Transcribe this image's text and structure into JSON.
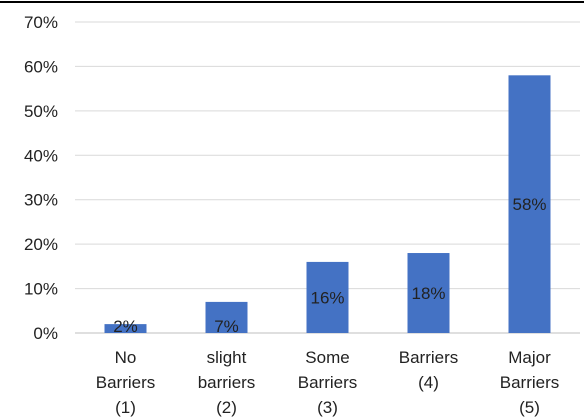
{
  "chart_data": {
    "type": "bar",
    "categories": [
      [
        "No",
        "Barriers",
        "(1)"
      ],
      [
        "slight",
        "barriers",
        "(2)"
      ],
      [
        "Some",
        "Barriers",
        "(3)"
      ],
      [
        "Barriers",
        "(4)"
      ],
      [
        "Major",
        "Barriers",
        "(5)"
      ]
    ],
    "values": [
      2,
      7,
      16,
      18,
      58
    ],
    "data_labels": [
      "2%",
      "7%",
      "16%",
      "18%",
      "58%"
    ],
    "yticks": [
      "0%",
      "10%",
      "20%",
      "30%",
      "40%",
      "50%",
      "60%",
      "70%"
    ],
    "ylim": [
      0,
      70
    ],
    "grid": true,
    "title": "",
    "xlabel": "",
    "ylabel": "",
    "colors": {
      "bar": "#4472C4",
      "grid": "#d9d9d9",
      "top_border": "#000000"
    }
  }
}
